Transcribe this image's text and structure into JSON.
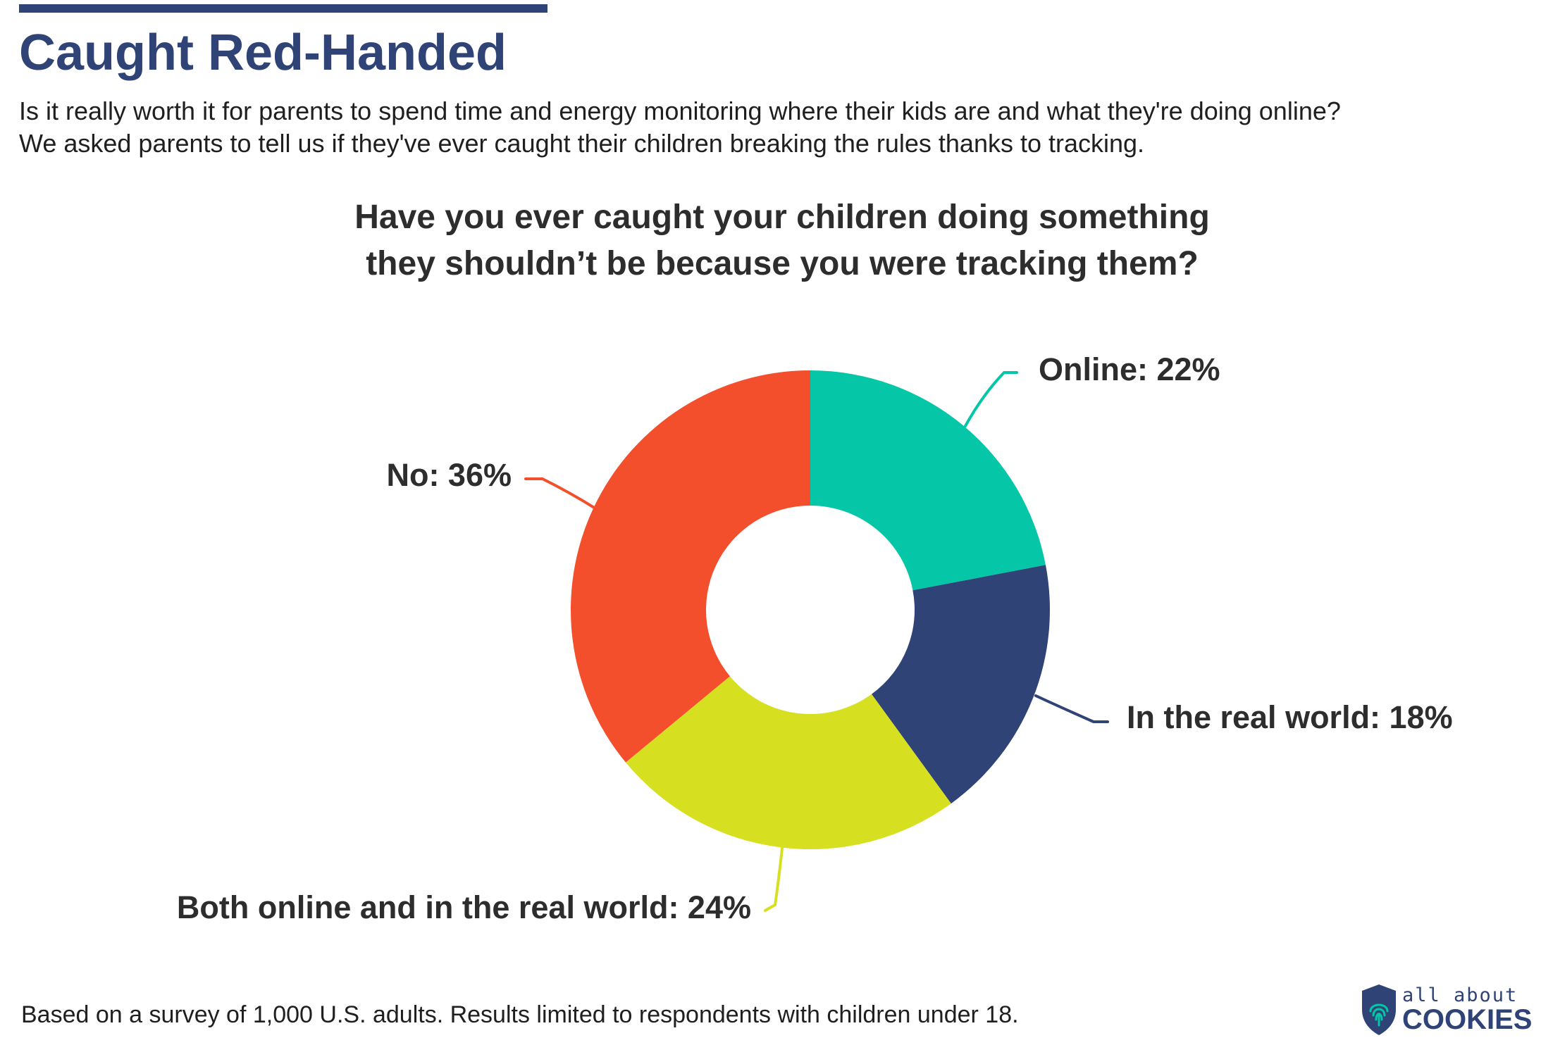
{
  "title": "Caught Red-Handed",
  "intro": {
    "line1": "Is it really worth it for parents to spend time and energy monitoring where their kids are and what they're doing online?",
    "line2": "We asked parents to tell us if they've ever caught their children breaking the rules thanks to tracking."
  },
  "question": {
    "line1": "Have you ever caught your children doing something",
    "line2": "they shouldn’t be because you were tracking them?"
  },
  "colors": {
    "accent": "#2f4376",
    "online": "#05c6a6",
    "real_world": "#2f4376",
    "both": "#d6df20",
    "no": "#f44f2c"
  },
  "chart_data": {
    "type": "pie",
    "donut": true,
    "start": "12 o'clock, clockwise",
    "slices": [
      {
        "label": "Online: 22%",
        "name": "Online",
        "value": 22,
        "color": "#05c6a6"
      },
      {
        "label": "In the real world: 18%",
        "name": "In the real world",
        "value": 18,
        "color": "#2f4376"
      },
      {
        "label": "Both online and in the real world: 24%",
        "name": "Both online and in the real world",
        "value": 24,
        "color": "#d6df20"
      },
      {
        "label": "No: 36%",
        "name": "No",
        "value": 36,
        "color": "#f44f2c"
      }
    ]
  },
  "footnote": "Based on a survey of 1,000 U.S. adults. Results limited to respondents with children under 18.",
  "logo": {
    "top": "all about",
    "bottom": "COOKIES"
  }
}
